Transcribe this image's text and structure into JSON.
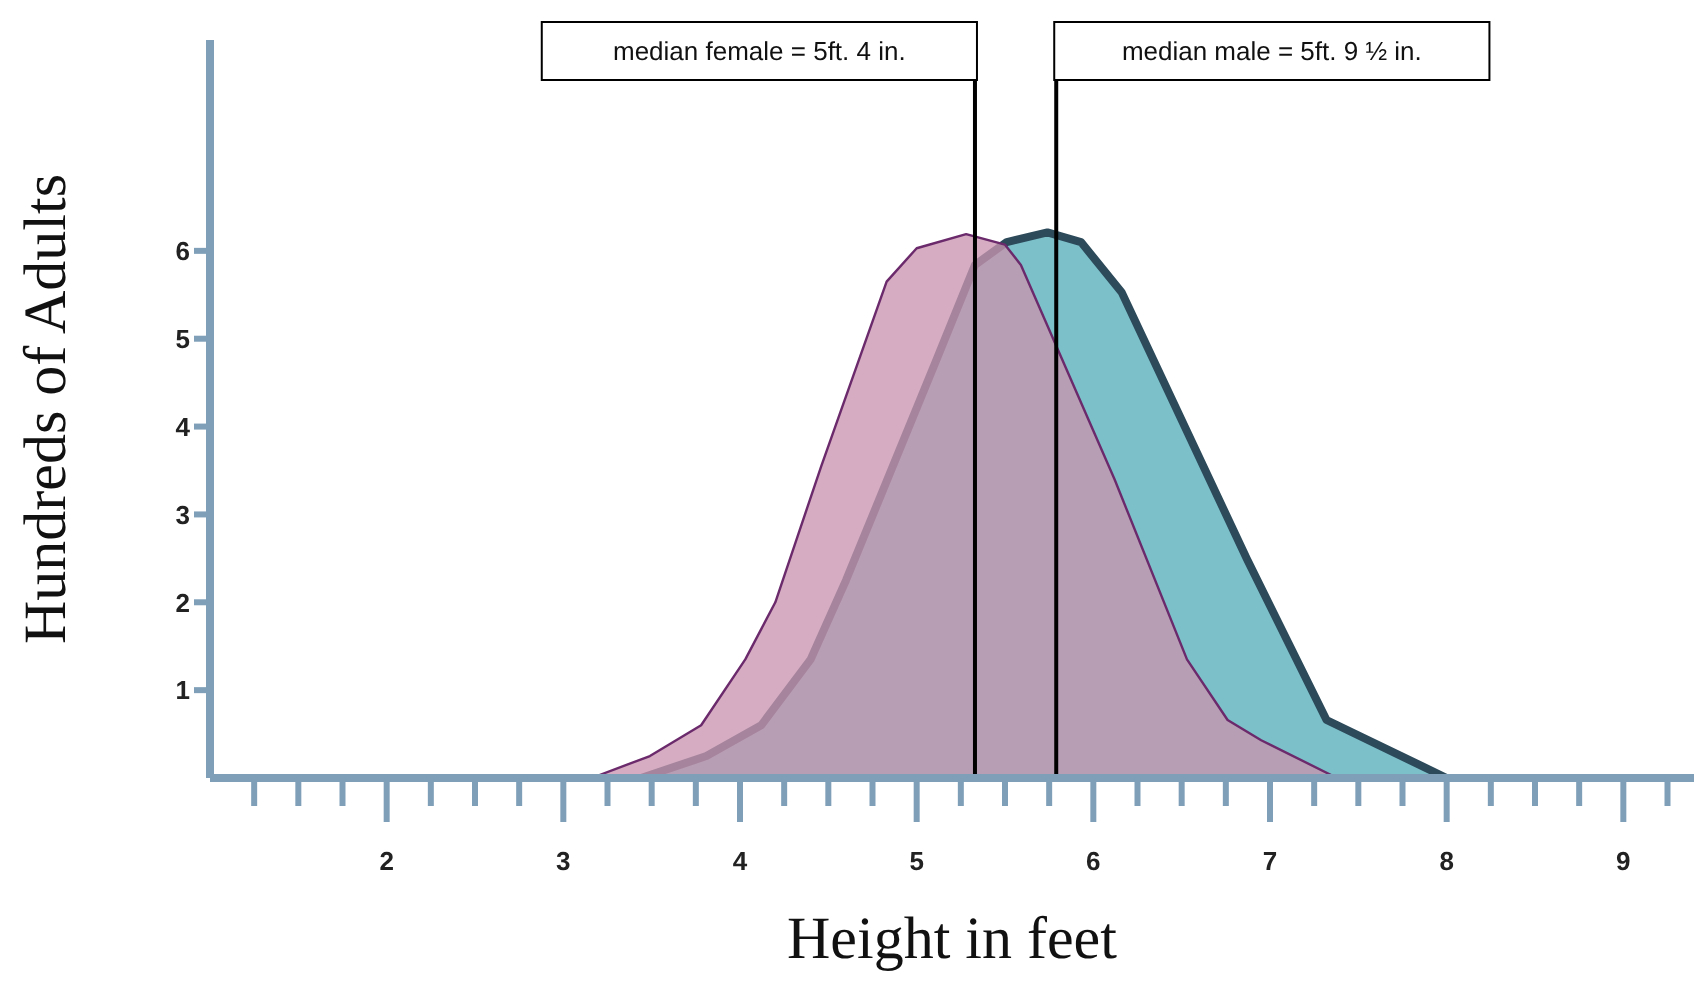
{
  "chart_data": {
    "type": "area",
    "xlabel": "Height in feet",
    "ylabel": "Hundreds of Adults",
    "series": [
      {
        "color": "#7cc0ca",
        "x": [
          3.44,
          3.81,
          4.12,
          4.4,
          4.6,
          5.1,
          5.33,
          5.51,
          5.74,
          5.93,
          6.16,
          6.87,
          7.32,
          8.0
        ],
        "values": [
          0,
          0.25,
          0.6,
          1.35,
          2.25,
          4.7,
          5.84,
          6.1,
          6.21,
          6.1,
          5.53,
          2.49,
          0.66,
          0
        ]
      },
      {
        "color": "#c995b0",
        "x": [
          3.16,
          3.49,
          3.78,
          4.03,
          4.2,
          4.46,
          4.83,
          5.0,
          5.28,
          5.5,
          5.59,
          6.12,
          6.53,
          6.76,
          6.95,
          7.38
        ],
        "values": [
          0,
          0.25,
          0.6,
          1.35,
          2.0,
          3.55,
          5.65,
          6.03,
          6.19,
          6.07,
          5.84,
          3.4,
          1.35,
          0.66,
          0.43,
          0
        ]
      }
    ],
    "xlim": [
      1,
      9.4
    ],
    "xticks": [
      {
        "value": 1.25,
        "label": null
      },
      {
        "value": 1.5,
        "label": null
      },
      {
        "value": 1.75,
        "label": null
      },
      2,
      {
        "value": 2.25,
        "label": null
      },
      {
        "value": 2.5,
        "label": null
      },
      {
        "value": 2.75,
        "label": null
      },
      3,
      {
        "value": 3.25,
        "label": null
      },
      {
        "value": 3.5,
        "label": null
      },
      {
        "value": 3.75,
        "label": null
      },
      4,
      {
        "value": 4.25,
        "label": null
      },
      {
        "value": 4.5,
        "label": null
      },
      {
        "value": 4.75,
        "label": null
      },
      5,
      {
        "value": 5.25,
        "label": null
      },
      {
        "value": 5.5,
        "label": null
      },
      {
        "value": 5.75,
        "label": null
      },
      6,
      {
        "value": 6.25,
        "label": null
      },
      {
        "value": 6.5,
        "label": null
      },
      {
        "value": 6.75,
        "label": null
      },
      7,
      {
        "value": 7.25,
        "label": null
      },
      {
        "value": 7.5,
        "label": null
      },
      {
        "value": 7.75,
        "label": null
      },
      8,
      {
        "value": 8.25,
        "label": null
      },
      {
        "value": 8.5,
        "label": null
      },
      {
        "value": 8.75,
        "label": null
      },
      9,
      {
        "value": 9.25,
        "label": null
      }
    ],
    "ylim": [
      0,
      8.4
    ],
    "yticks": [
      1,
      2,
      3,
      4,
      5,
      6
    ],
    "grid": false,
    "ref_lines": [
      {
        "axis": "x",
        "value": 5.33,
        "color": "#000000"
      },
      {
        "axis": "x",
        "value": 5.79,
        "color": "#000000"
      }
    ],
    "annotations": [
      "median female = 5ft. 4 in.",
      "median male = 5ft. 9 ½ in."
    ]
  }
}
